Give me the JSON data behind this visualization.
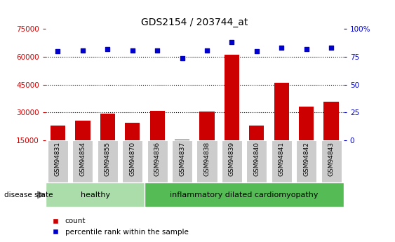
{
  "title": "GDS2154 / 203744_at",
  "samples": [
    "GSM94831",
    "GSM94854",
    "GSM94855",
    "GSM94870",
    "GSM94836",
    "GSM94837",
    "GSM94838",
    "GSM94839",
    "GSM94840",
    "GSM94841",
    "GSM94842",
    "GSM94843"
  ],
  "counts": [
    23000,
    25500,
    29500,
    24500,
    31000,
    15500,
    30500,
    61000,
    23000,
    46000,
    33000,
    36000
  ],
  "percentiles": [
    80,
    81,
    82,
    81,
    81,
    74,
    81,
    88,
    80,
    83,
    82,
    83
  ],
  "n_healthy": 4,
  "healthy_label": "healthy",
  "disease_label": "inflammatory dilated cardiomyopathy",
  "bar_color": "#cc0000",
  "dot_color": "#0000cc",
  "healthy_bg": "#aaddaa",
  "disease_bg": "#55bb55",
  "label_bg": "#cccccc",
  "ylim_left": [
    15000,
    75000
  ],
  "yticks_left": [
    15000,
    30000,
    45000,
    60000,
    75000
  ],
  "ylim_right": [
    0,
    100
  ],
  "yticks_right": [
    0,
    25,
    50,
    75,
    100
  ],
  "grid_values": [
    30000,
    45000,
    60000
  ],
  "left_axis_color": "#cc0000",
  "right_axis_color": "#0000cc",
  "legend_count_label": "count",
  "legend_pct_label": "percentile rank within the sample",
  "disease_state_label": "disease state"
}
